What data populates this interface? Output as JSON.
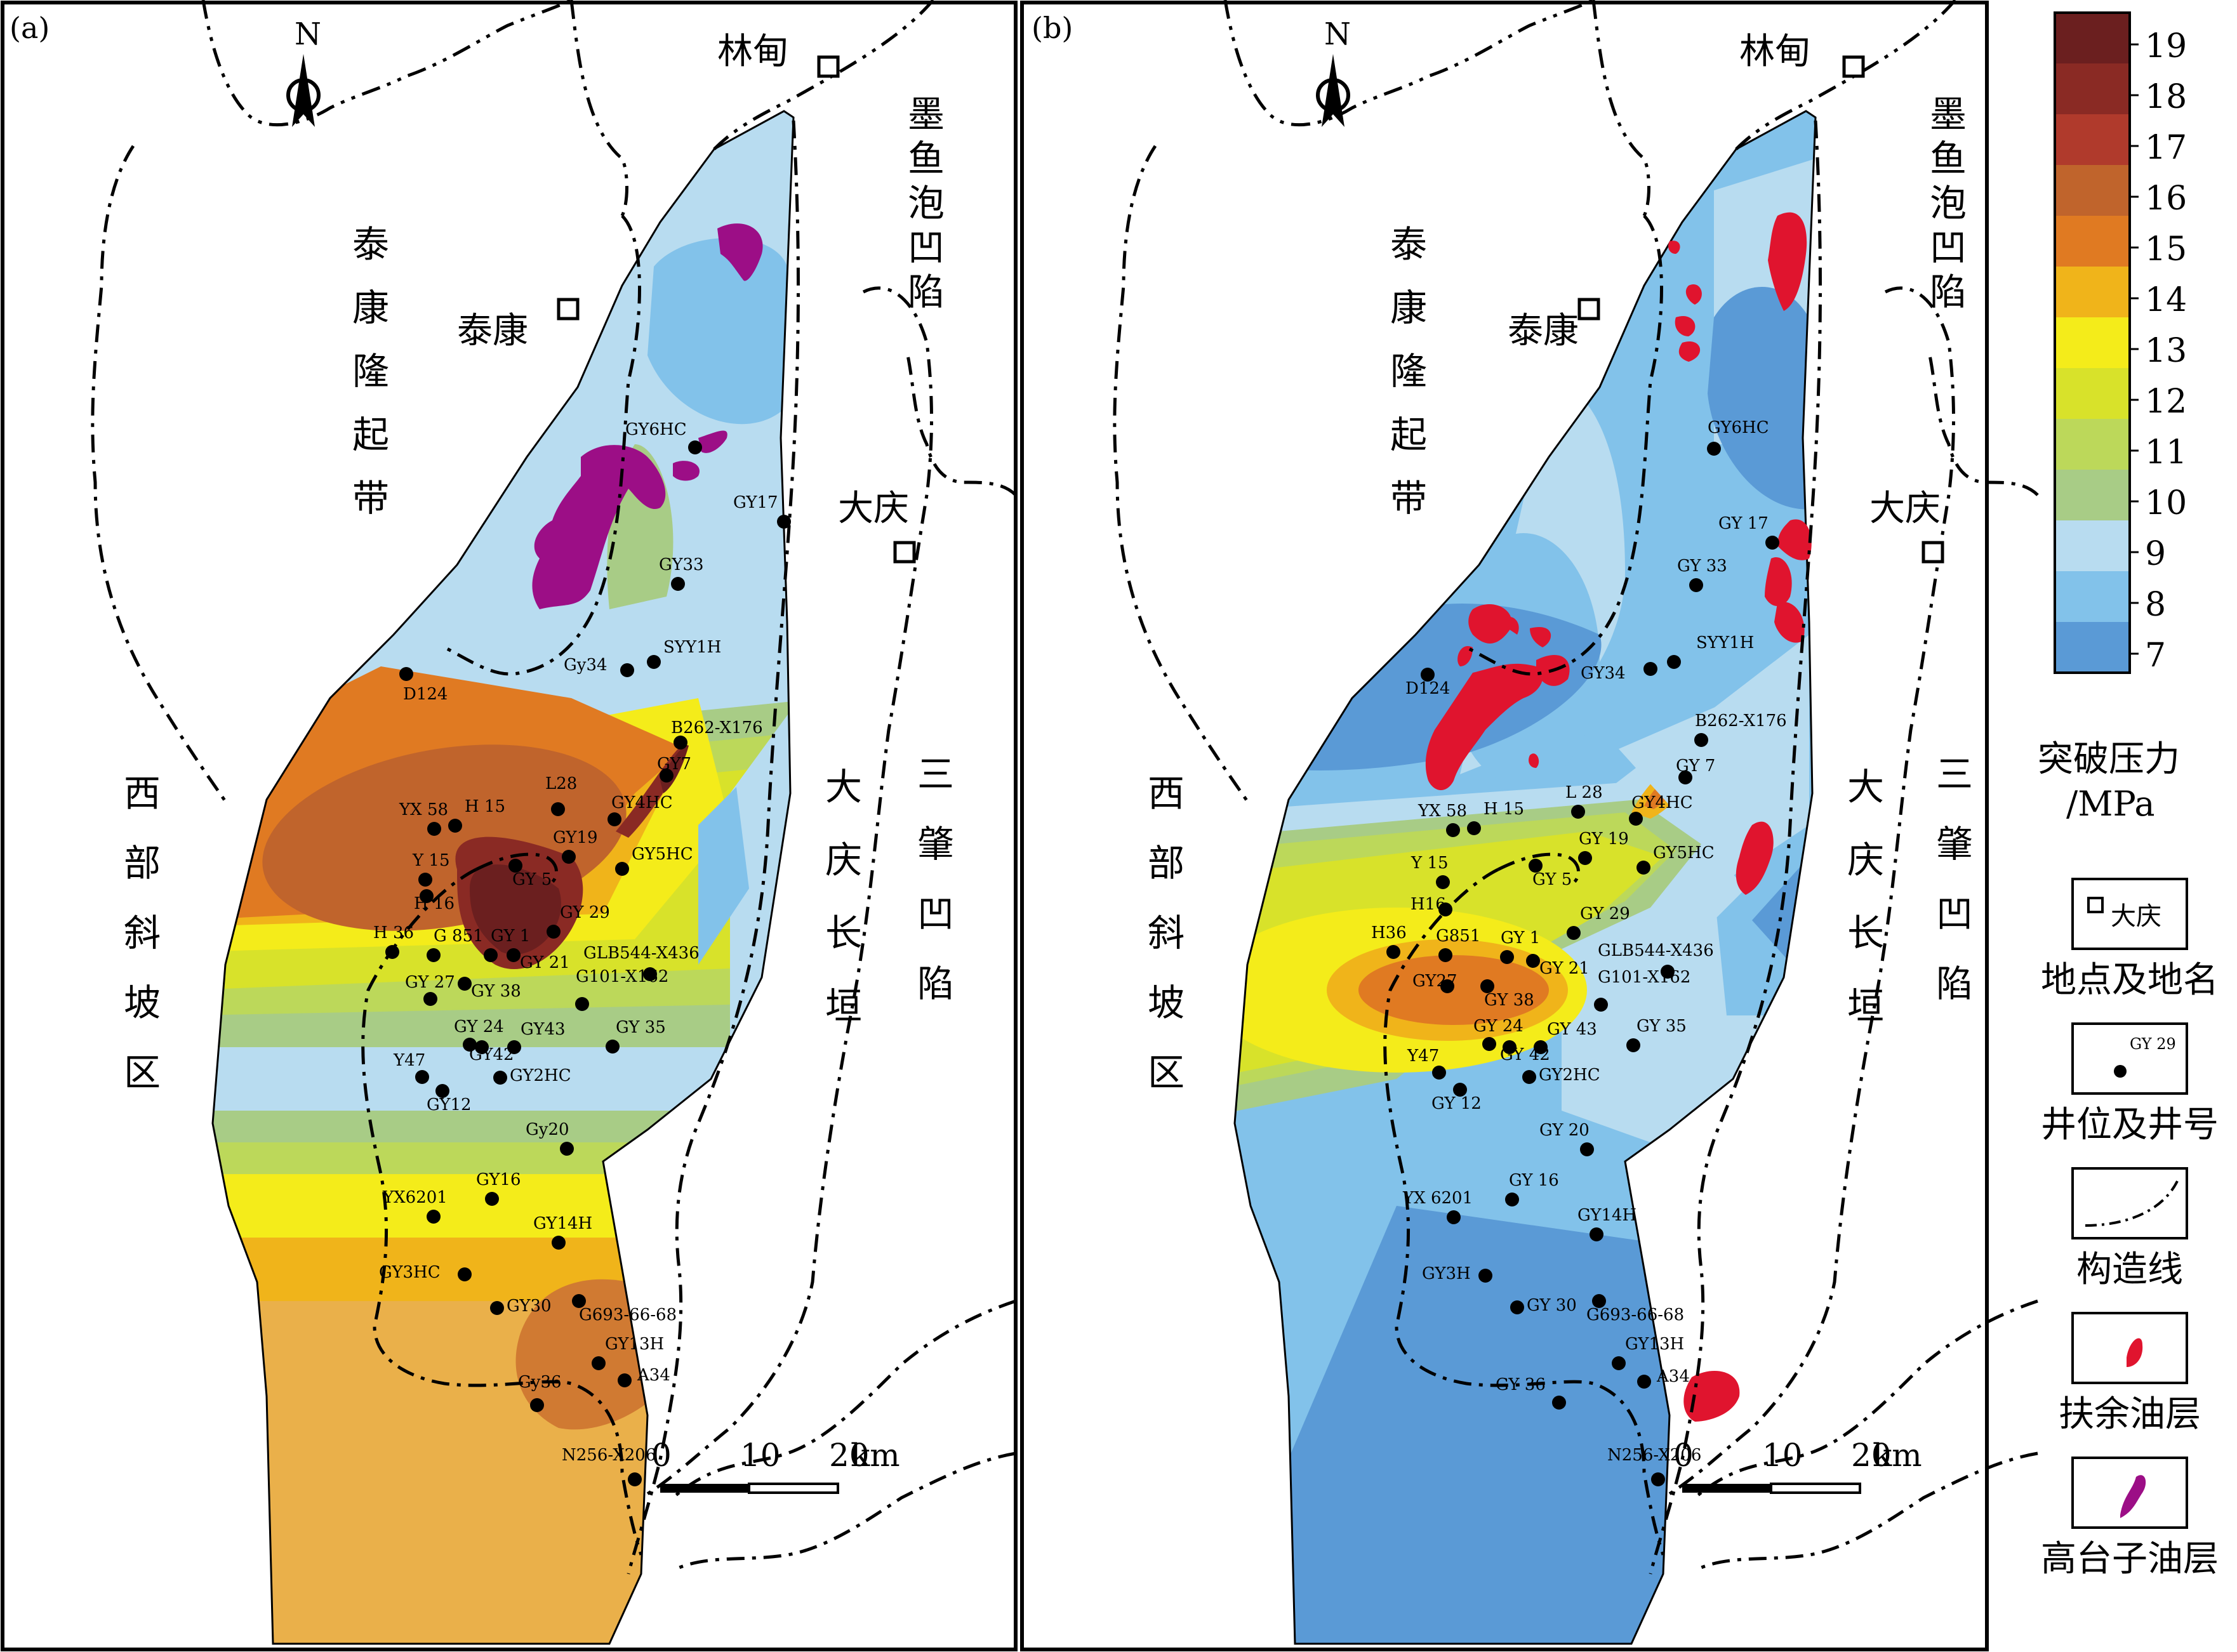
{
  "panels": [
    {
      "id": "a",
      "label": "(a)",
      "wells": [
        {
          "name": "GY6HC"
        },
        {
          "name": "GY17"
        },
        {
          "name": "GY33"
        },
        {
          "name": "SYY1H"
        },
        {
          "name": "Gy34"
        },
        {
          "name": "D124"
        },
        {
          "name": "B262-X176"
        },
        {
          "name": "GY7"
        },
        {
          "name": "GY4HC"
        },
        {
          "name": "L28"
        },
        {
          "name": "YX 58"
        },
        {
          "name": "H 15"
        },
        {
          "name": "GY19"
        },
        {
          "name": "GY5HC"
        },
        {
          "name": "Y 15"
        },
        {
          "name": "GY 5"
        },
        {
          "name": "H 16"
        },
        {
          "name": "GY 29"
        },
        {
          "name": "H 36"
        },
        {
          "name": "G 851"
        },
        {
          "name": "GY 1"
        },
        {
          "name": "GY 21"
        },
        {
          "name": "GLB544-X436"
        },
        {
          "name": "GY 27"
        },
        {
          "name": "GY 38"
        },
        {
          "name": "G101-X162"
        },
        {
          "name": "GY 24"
        },
        {
          "name": "GY43"
        },
        {
          "name": "GY 35"
        },
        {
          "name": "Y47"
        },
        {
          "name": "GY42"
        },
        {
          "name": "GY2HC"
        },
        {
          "name": "GY12"
        },
        {
          "name": "Gy20"
        },
        {
          "name": "GY16"
        },
        {
          "name": "YX6201"
        },
        {
          "name": "GY14H"
        },
        {
          "name": "GY3HC"
        },
        {
          "name": "GY30"
        },
        {
          "name": "G693-66-68"
        },
        {
          "name": "GY13H"
        },
        {
          "name": "A34"
        },
        {
          "name": "Gy36"
        },
        {
          "name": "N256-X206"
        }
      ],
      "places": {
        "taikang": "泰康",
        "lindian": "林甸",
        "daqing": "大庆"
      },
      "regions": {
        "tk_uplift": [
          "泰",
          "康",
          "隆",
          "起",
          "带"
        ],
        "west_slope": [
          "西",
          "部",
          "斜",
          "坡",
          "区"
        ],
        "moyu": [
          "墨",
          "鱼",
          "泡",
          "凹",
          "陷"
        ],
        "daqing_anticline": [
          "大",
          "庆",
          "长",
          "垣"
        ],
        "sanzhao": [
          "三",
          "肇",
          "凹",
          "陷"
        ]
      },
      "scale": {
        "ticks": [
          "0",
          "10",
          "20"
        ],
        "unit": "km"
      },
      "north": "N"
    },
    {
      "id": "b",
      "label": "(b)",
      "wells": [
        {
          "name": "GY6HC"
        },
        {
          "name": "GY 17"
        },
        {
          "name": "GY 33"
        },
        {
          "name": "SYY1H"
        },
        {
          "name": "GY34"
        },
        {
          "name": "D124"
        },
        {
          "name": "B262-X176"
        },
        {
          "name": "GY 7"
        },
        {
          "name": "GY4HC"
        },
        {
          "name": "L 28"
        },
        {
          "name": "YX 58"
        },
        {
          "name": "H 15"
        },
        {
          "name": "GY 19"
        },
        {
          "name": "GY5HC"
        },
        {
          "name": "Y 15"
        },
        {
          "name": "GY 5"
        },
        {
          "name": "H16"
        },
        {
          "name": "GY 29"
        },
        {
          "name": "H36"
        },
        {
          "name": "G851"
        },
        {
          "name": "GY 1"
        },
        {
          "name": "GY 21"
        },
        {
          "name": "GLB544-X436"
        },
        {
          "name": "GY27"
        },
        {
          "name": "GY 38"
        },
        {
          "name": "G101-X162"
        },
        {
          "name": "GY 24"
        },
        {
          "name": "GY 43"
        },
        {
          "name": "GY 35"
        },
        {
          "name": "Y47"
        },
        {
          "name": "GY 42"
        },
        {
          "name": "GY2HC"
        },
        {
          "name": "GY 12"
        },
        {
          "name": "GY 20"
        },
        {
          "name": "GY 16"
        },
        {
          "name": "YX 6201"
        },
        {
          "name": "GY14H"
        },
        {
          "name": "GY3H"
        },
        {
          "name": "GY 30"
        },
        {
          "name": "G693-66-68"
        },
        {
          "name": "GY13H"
        },
        {
          "name": "A34"
        },
        {
          "name": "GY 36"
        },
        {
          "name": "N256-X206"
        }
      ],
      "places": {
        "taikang": "泰康",
        "lindian": "林甸",
        "daqing": "大庆"
      },
      "regions": {
        "tk_uplift": [
          "泰",
          "康",
          "隆",
          "起",
          "带"
        ],
        "west_slope": [
          "西",
          "部",
          "斜",
          "坡",
          "区"
        ],
        "moyu": [
          "墨",
          "鱼",
          "泡",
          "凹",
          "陷"
        ],
        "daqing_anticline": [
          "大",
          "庆",
          "长",
          "垣"
        ],
        "sanzhao": [
          "三",
          "肇",
          "凹",
          "陷"
        ]
      },
      "scale": {
        "ticks": [
          "0",
          "10",
          "20"
        ],
        "unit": "km"
      },
      "north": "N"
    }
  ],
  "colorbar": {
    "ticks": [
      "19",
      "18",
      "17",
      "16",
      "15",
      "14",
      "13",
      "12",
      "11",
      "10",
      "9",
      "8",
      "7"
    ],
    "colors": [
      "#6b1f1f",
      "#8a2a24",
      "#b03a2c",
      "#c0642c",
      "#e07a22",
      "#f0b41a",
      "#f4ec1a",
      "#d8e22a",
      "#bcd85a",
      "#a8cc86",
      "#b8dcf0",
      "#82c2ea",
      "#5a9ad6"
    ],
    "title_line1": "突破压力",
    "title_line2": "/MPa"
  },
  "legend": [
    {
      "icon": "place-symbol-icon",
      "sample": "大庆",
      "label": "地点及地名"
    },
    {
      "icon": "well-symbol-icon",
      "sample": "GY 29",
      "label": "井位及井号"
    },
    {
      "icon": "structural-line-icon",
      "sample": "",
      "label": "构造线"
    },
    {
      "icon": "fuyu-oil-icon",
      "sample": "",
      "label": "扶余油层",
      "color": "#e0142e"
    },
    {
      "icon": "gaotaizi-oil-icon",
      "sample": "",
      "label": "高台子油层",
      "color": "#9c0e86"
    }
  ]
}
